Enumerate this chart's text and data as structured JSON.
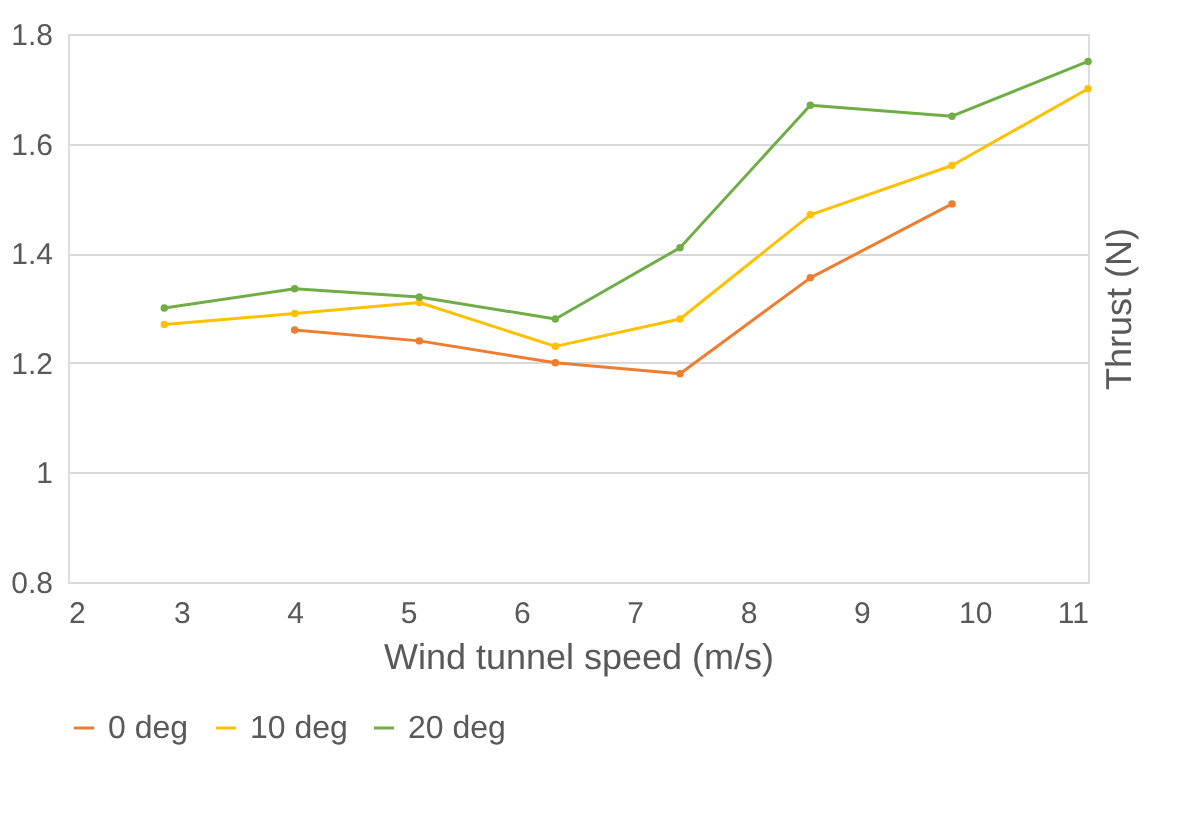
{
  "chart_data": {
    "type": "line",
    "xlabel": "Wind tunnel speed (m/s)",
    "ylabel": "Thrust (N)",
    "xlim": [
      2,
      11
    ],
    "xticks": [
      2,
      3,
      4,
      5,
      6,
      7,
      8,
      9,
      10,
      11
    ],
    "ylim": [
      0.8,
      1.8
    ],
    "yticks": [
      0.8,
      1,
      1.2,
      1.4,
      1.6,
      1.8
    ],
    "grid": "y",
    "legend": "bottom",
    "marker": "circle",
    "line_style": "solid",
    "series": [
      {
        "name": "0 deg",
        "color": "#ed7d31",
        "x": [
          4.0,
          5.1,
          6.3,
          7.4,
          8.55,
          9.8
        ],
        "values": [
          1.26,
          1.24,
          1.2,
          1.18,
          1.355,
          1.49
        ]
      },
      {
        "name": "10 deg",
        "color": "#ffc000",
        "x": [
          2.85,
          4.0,
          5.1,
          6.3,
          7.4,
          8.55,
          9.8,
          11
        ],
        "values": [
          1.27,
          1.29,
          1.31,
          1.23,
          1.28,
          1.47,
          1.56,
          1.7
        ]
      },
      {
        "name": "20 deg",
        "color": "#70ad47",
        "x": [
          2.85,
          4.0,
          5.1,
          6.3,
          7.4,
          8.55,
          9.8,
          11
        ],
        "values": [
          1.3,
          1.335,
          1.32,
          1.28,
          1.41,
          1.67,
          1.65,
          1.75
        ]
      }
    ]
  }
}
